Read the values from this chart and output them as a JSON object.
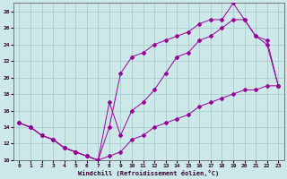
{
  "xlabel": "Windchill (Refroidissement éolien,°C)",
  "background_color": "#cce8e8",
  "grid_color": "#aacccc",
  "line_color": "#990099",
  "xlim": [
    -0.5,
    23.5
  ],
  "ylim": [
    10,
    29
  ],
  "xticks": [
    0,
    1,
    2,
    3,
    4,
    5,
    6,
    7,
    8,
    9,
    10,
    11,
    12,
    13,
    14,
    15,
    16,
    17,
    18,
    19,
    20,
    21,
    22,
    23
  ],
  "yticks": [
    10,
    12,
    14,
    16,
    18,
    20,
    22,
    24,
    26,
    28
  ],
  "series": [
    {
      "x": [
        0,
        1,
        2,
        3,
        4,
        5,
        6,
        7,
        8,
        9,
        10,
        11,
        12,
        13,
        14,
        15,
        16,
        17,
        18,
        19,
        20,
        21,
        22,
        23
      ],
      "y": [
        14.5,
        14.0,
        13.0,
        12.5,
        11.5,
        11.0,
        10.5,
        10.0,
        10.5,
        11.0,
        12.5,
        13.0,
        14.0,
        14.5,
        15.0,
        15.5,
        16.5,
        17.0,
        17.5,
        18.0,
        18.5,
        18.5,
        19.0,
        19.0
      ]
    },
    {
      "x": [
        0,
        1,
        2,
        3,
        4,
        5,
        6,
        7,
        8,
        9,
        10,
        11,
        12,
        13,
        14,
        15,
        16,
        17,
        18,
        19,
        20,
        21,
        22,
        23
      ],
      "y": [
        14.5,
        14.0,
        13.0,
        12.5,
        11.5,
        11.0,
        10.5,
        10.0,
        17.0,
        13.0,
        16.0,
        17.0,
        18.5,
        20.5,
        22.5,
        23.0,
        24.5,
        25.0,
        26.0,
        27.0,
        27.0,
        25.0,
        24.0,
        19.0
      ]
    },
    {
      "x": [
        0,
        1,
        2,
        3,
        4,
        5,
        6,
        7,
        8,
        9,
        10,
        11,
        12,
        13,
        14,
        15,
        16,
        17,
        18,
        19,
        20,
        21,
        22,
        23
      ],
      "y": [
        14.5,
        14.0,
        13.0,
        12.5,
        11.5,
        11.0,
        10.5,
        10.0,
        14.0,
        20.5,
        22.5,
        23.0,
        24.0,
        24.5,
        25.0,
        25.5,
        26.5,
        27.0,
        27.0,
        29.0,
        27.0,
        25.0,
        24.5,
        19.0
      ]
    }
  ]
}
